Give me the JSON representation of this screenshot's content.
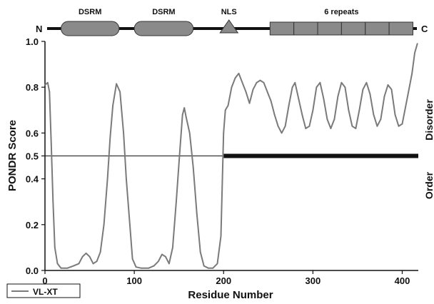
{
  "domain_diagram": {
    "n_label": "N",
    "c_label": "C",
    "domains": [
      {
        "label": "DSRM",
        "shape": "rounded-rect",
        "start_residue": 18,
        "end_residue": 83
      },
      {
        "label": "DSRM",
        "shape": "rounded-rect",
        "start_residue": 100,
        "end_residue": 166
      },
      {
        "label": "NLS",
        "shape": "triangle",
        "start_residue": 196,
        "end_residue": 216
      },
      {
        "label": "6 repeats",
        "shape": "segmented-rect",
        "start_residue": 252,
        "end_residue": 412,
        "segments": 6
      }
    ],
    "colors": {
      "backbone": "#111111",
      "domain_fill": "#8a8a8a",
      "domain_stroke": "#333333"
    }
  },
  "side_labels": {
    "upper": "Disorder",
    "lower": "Order"
  },
  "chart_data": {
    "type": "line",
    "xlabel": "Residue Number",
    "ylabel": "PONDR Score",
    "xlim": [
      0,
      418
    ],
    "ylim": [
      0,
      1
    ],
    "xticks": [
      0,
      100,
      200,
      300,
      400
    ],
    "yticks": [
      0.0,
      0.2,
      0.4,
      0.5,
      0.6,
      0.8,
      1.0
    ],
    "ytick_labels": [
      "0.0",
      "0.2",
      "0.4",
      "0.5",
      "0.6",
      "0.8",
      "1.0"
    ],
    "legend": {
      "position": "bottom-left",
      "entries": [
        "VL-XT"
      ]
    },
    "threshold": 0.5,
    "series": [
      {
        "name": "VL-XT",
        "color": "#7a7a7a",
        "points": [
          [
            0,
            0.81
          ],
          [
            3,
            0.82
          ],
          [
            5,
            0.78
          ],
          [
            7,
            0.55
          ],
          [
            9,
            0.3
          ],
          [
            11,
            0.1
          ],
          [
            14,
            0.03
          ],
          [
            18,
            0.01
          ],
          [
            25,
            0.01
          ],
          [
            32,
            0.02
          ],
          [
            38,
            0.03
          ],
          [
            42,
            0.06
          ],
          [
            46,
            0.075
          ],
          [
            50,
            0.06
          ],
          [
            54,
            0.03
          ],
          [
            58,
            0.04
          ],
          [
            62,
            0.08
          ],
          [
            66,
            0.2
          ],
          [
            70,
            0.4
          ],
          [
            73,
            0.58
          ],
          [
            76,
            0.72
          ],
          [
            80,
            0.815
          ],
          [
            84,
            0.78
          ],
          [
            88,
            0.6
          ],
          [
            91,
            0.4
          ],
          [
            95,
            0.2
          ],
          [
            98,
            0.05
          ],
          [
            102,
            0.015
          ],
          [
            108,
            0.01
          ],
          [
            116,
            0.01
          ],
          [
            122,
            0.02
          ],
          [
            127,
            0.04
          ],
          [
            131,
            0.07
          ],
          [
            135,
            0.06
          ],
          [
            139,
            0.03
          ],
          [
            143,
            0.1
          ],
          [
            147,
            0.3
          ],
          [
            151,
            0.52
          ],
          [
            154,
            0.68
          ],
          [
            156,
            0.71
          ],
          [
            158,
            0.67
          ],
          [
            162,
            0.6
          ],
          [
            166,
            0.45
          ],
          [
            170,
            0.25
          ],
          [
            174,
            0.08
          ],
          [
            178,
            0.02
          ],
          [
            183,
            0.01
          ],
          [
            188,
            0.01
          ],
          [
            193,
            0.03
          ],
          [
            197,
            0.15
          ],
          [
            200,
            0.6
          ],
          [
            202,
            0.7
          ],
          [
            205,
            0.72
          ],
          [
            209,
            0.8
          ],
          [
            213,
            0.84
          ],
          [
            217,
            0.86
          ],
          [
            221,
            0.82
          ],
          [
            225,
            0.78
          ],
          [
            229,
            0.73
          ],
          [
            233,
            0.79
          ],
          [
            237,
            0.82
          ],
          [
            241,
            0.83
          ],
          [
            245,
            0.82
          ],
          [
            249,
            0.78
          ],
          [
            253,
            0.74
          ],
          [
            257,
            0.68
          ],
          [
            261,
            0.63
          ],
          [
            265,
            0.6
          ],
          [
            269,
            0.63
          ],
          [
            273,
            0.72
          ],
          [
            277,
            0.8
          ],
          [
            280,
            0.82
          ],
          [
            284,
            0.75
          ],
          [
            288,
            0.68
          ],
          [
            292,
            0.62
          ],
          [
            296,
            0.63
          ],
          [
            300,
            0.7
          ],
          [
            304,
            0.8
          ],
          [
            308,
            0.82
          ],
          [
            312,
            0.75
          ],
          [
            316,
            0.66
          ],
          [
            320,
            0.62
          ],
          [
            324,
            0.66
          ],
          [
            328,
            0.76
          ],
          [
            332,
            0.82
          ],
          [
            336,
            0.8
          ],
          [
            340,
            0.7
          ],
          [
            344,
            0.63
          ],
          [
            348,
            0.62
          ],
          [
            352,
            0.7
          ],
          [
            356,
            0.79
          ],
          [
            360,
            0.82
          ],
          [
            364,
            0.77
          ],
          [
            368,
            0.68
          ],
          [
            372,
            0.63
          ],
          [
            376,
            0.66
          ],
          [
            380,
            0.76
          ],
          [
            384,
            0.81
          ],
          [
            388,
            0.79
          ],
          [
            392,
            0.68
          ],
          [
            396,
            0.63
          ],
          [
            400,
            0.64
          ],
          [
            404,
            0.72
          ],
          [
            408,
            0.8
          ],
          [
            411,
            0.86
          ],
          [
            414,
            0.95
          ],
          [
            417,
            0.99
          ]
        ]
      }
    ],
    "disorder_region": {
      "start": 200,
      "end": 418,
      "color": "#111111"
    }
  }
}
